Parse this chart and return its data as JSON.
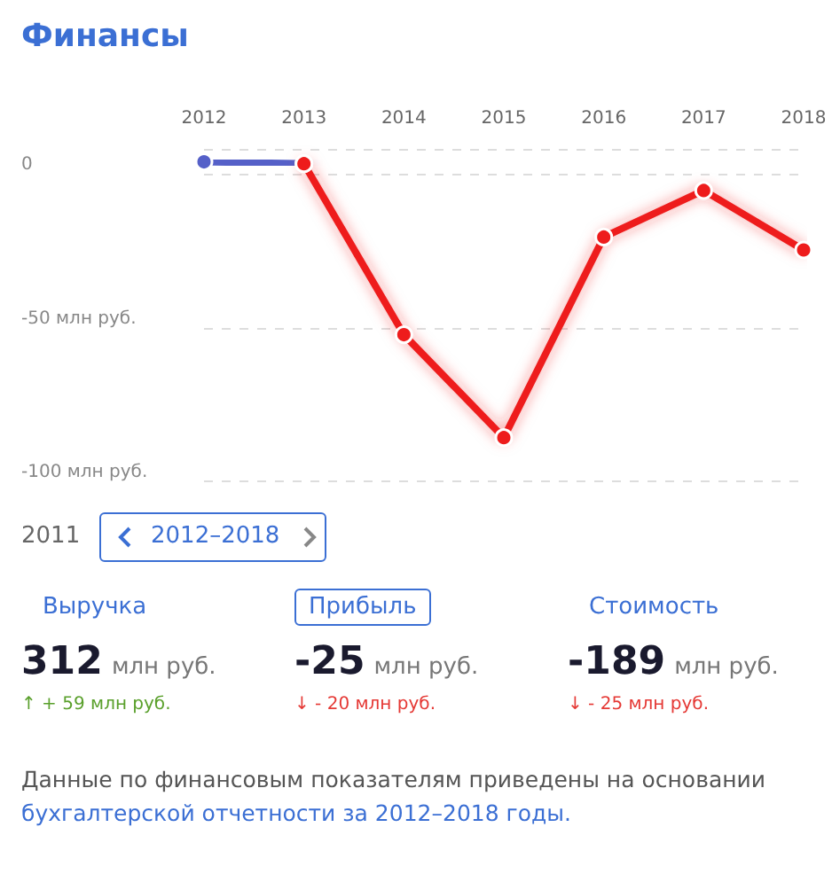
{
  "chart_data": {
    "type": "line",
    "title": "Финансы",
    "categories": [
      "2012",
      "2013",
      "2014",
      "2015",
      "2016",
      "2017",
      "2018"
    ],
    "series": [
      {
        "color": "#5560c8",
        "values": [
          3.8,
          3.2,
          null,
          null,
          null,
          null,
          null
        ]
      },
      {
        "color": "#ee1c1c",
        "values": [
          null,
          3.2,
          -52.3,
          -85.7,
          -20.6,
          -5.5,
          -24.8
        ]
      }
    ],
    "ylim": [
      -100,
      8
    ],
    "yticks": [
      {
        "value": 0,
        "label": "0"
      },
      {
        "value": -50,
        "label": "-50 млн руб."
      },
      {
        "value": -100,
        "label": "-100 млн руб."
      }
    ],
    "grid": "y",
    "marker": "circle",
    "line_style": "solid",
    "annotations": [
      "2011",
      "2012–2018",
      "Выручка",
      "Прибыль",
      "Стоимость",
      "312",
      "млн руб.",
      "-25",
      "млн руб.",
      "-189",
      "млн руб.",
      "↑ + 59 млн руб.",
      "↓ - 20 млн руб.",
      "↓ - 25 млн руб.",
      "Данные по финансовым показателям приведены на основании",
      "бухгалтерской отчетности за 2012–2018 годы."
    ]
  }
}
